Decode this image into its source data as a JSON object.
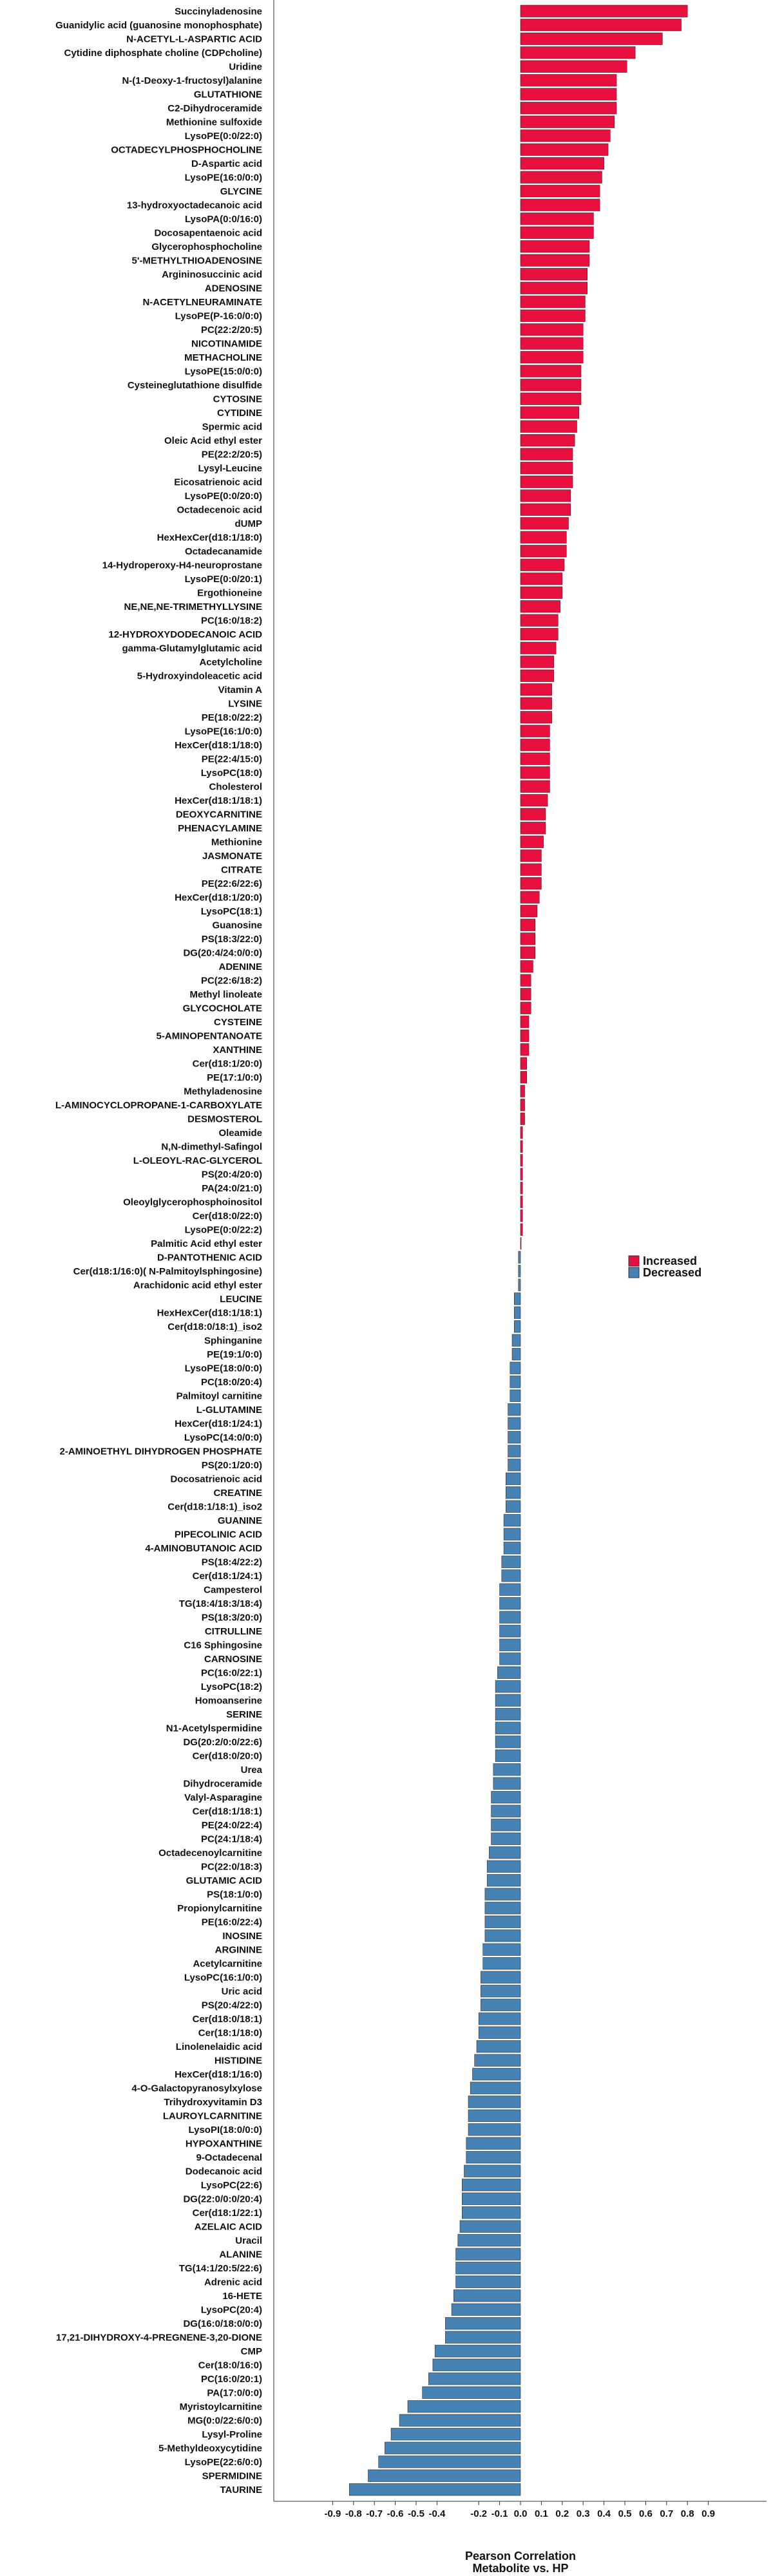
{
  "chart_data": {
    "type": "bar",
    "orientation": "horizontal",
    "xlabel": "Pearson Correlation",
    "xlabel2": "Metabolite vs. HP",
    "xlim": [
      -0.9,
      0.9
    ],
    "xticks": [
      -0.9,
      -0.8,
      -0.7,
      -0.6,
      -0.5,
      -0.4,
      -0.2,
      -0.1,
      0.0,
      0.1,
      0.2,
      0.3,
      0.4,
      0.5,
      0.6,
      0.7,
      0.8,
      0.9
    ],
    "xtick_labels": [
      "-0.9",
      "-0.8",
      "-0.7",
      "-0.6",
      "-0.5",
      "-0.4",
      "-0.2",
      "-0.1",
      "0.0",
      "0.1",
      "0.2",
      "0.3",
      "0.4",
      "0.5",
      "0.6",
      "0.7",
      "0.8",
      "0.9"
    ],
    "grid": false,
    "legend_position": "right",
    "legend": [
      {
        "name": "Increased",
        "color": "#e8103e"
      },
      {
        "name": "Decreased",
        "color": "#4682b4"
      }
    ],
    "categories": [
      "Succinyladenosine",
      "Guanidylic acid (guanosine monophosphate)",
      "N-ACETYL-L-ASPARTIC ACID",
      "Cytidine diphosphate choline (CDPcholine)",
      "Uridine",
      "N-(1-Deoxy-1-fructosyl)alanine",
      "GLUTATHIONE",
      "C2-Dihydroceramide",
      "Methionine sulfoxide",
      "LysoPE(0:0/22:0)",
      "OCTADECYLPHOSPHOCHOLINE",
      "D-Aspartic acid",
      "LysoPE(16:0/0:0)",
      "GLYCINE",
      "13-hydroxyoctadecanoic acid",
      "LysoPA(0:0/16:0)",
      "Docosapentaenoic acid",
      "Glycerophosphocholine",
      "5'-METHYLTHIOADENOSINE",
      "Argininosuccinic acid",
      "ADENOSINE",
      "N-ACETYLNEURAMINATE",
      "LysoPE(P-16:0/0:0)",
      "PC(22:2/20:5)",
      "NICOTINAMIDE",
      "METHACHOLINE",
      "LysoPE(15:0/0:0)",
      "Cysteineglutathione disulfide",
      "CYTOSINE",
      "CYTIDINE",
      "Spermic acid",
      "Oleic Acid ethyl ester",
      "PE(22:2/20:5)",
      "Lysyl-Leucine",
      "Eicosatrienoic acid",
      "LysoPE(0:0/20:0)",
      "Octadecenoic acid",
      "dUMP",
      "HexHexCer(d18:1/18:0)",
      "Octadecanamide",
      "14-Hydroperoxy-H4-neuroprostane",
      "LysoPE(0:0/20:1)",
      "Ergothioneine",
      "NE,NE,NE-TRIMETHYLLYSINE",
      "PC(16:0/18:2)",
      "12-HYDROXYDODECANOIC ACID",
      "gamma-Glutamylglutamic acid",
      "Acetylcholine",
      "5-Hydroxyindoleacetic acid",
      "Vitamin A",
      "LYSINE",
      "PE(18:0/22:2)",
      "LysoPE(16:1/0:0)",
      "HexCer(d18:1/18:0)",
      "PE(22:4/15:0)",
      "LysoPC(18:0)",
      "Cholesterol",
      "HexCer(d18:1/18:1)",
      "DEOXYCARNITINE",
      "PHENACYLAMINE",
      "Methionine",
      "JASMONATE",
      "CITRATE",
      "PE(22:6/22:6)",
      "HexCer(d18:1/20:0)",
      "LysoPC(18:1)",
      "Guanosine",
      "PS(18:3/22:0)",
      "DG(20:4/24:0/0:0)",
      "ADENINE",
      "PC(22:6/18:2)",
      "Methyl linoleate",
      "GLYCOCHOLATE",
      "CYSTEINE",
      "5-AMINOPENTANOATE",
      "XANTHINE",
      "Cer(d18:1/20:0)",
      "PE(17:1/0:0)",
      "Methyladenosine",
      "L-AMINOCYCLOPROPANE-1-CARBOXYLATE",
      "DESMOSTEROL",
      "Oleamide",
      "N,N-dimethyl-Safingol",
      "L-OLEOYL-RAC-GLYCEROL",
      "PS(20:4/20:0)",
      "PA(24:0/21:0)",
      "Oleoylglycerophosphoinositol",
      "Cer(d18:0/22:0)",
      "LysoPE(0:0/22:2)",
      "Palmitic Acid ethyl ester",
      "D-PANTOTHENIC ACID",
      "Cer(d18:1/16:0)( N-Palmitoylsphingosine)",
      "Arachidonic acid ethyl ester",
      "LEUCINE",
      "HexHexCer(d18:1/18:1)",
      "Cer(d18:0/18:1)_iso2",
      "Sphinganine",
      "PE(19:1/0:0)",
      "LysoPE(18:0/0:0)",
      "PC(18:0/20:4)",
      "Palmitoyl carnitine",
      "L-GLUTAMINE",
      "HexCer(d18:1/24:1)",
      "LysoPC(14:0/0:0)",
      "2-AMINOETHYL DIHYDROGEN PHOSPHATE",
      "PS(20:1/20:0)",
      "Docosatrienoic acid",
      "CREATINE",
      "Cer(d18:1/18:1)_iso2",
      "GUANINE",
      "PIPECOLINIC ACID",
      "4-AMINOBUTANOIC ACID",
      "PS(18:4/22:2)",
      "Cer(d18:1/24:1)",
      "Campesterol",
      "TG(18:4/18:3/18:4)",
      "PS(18:3/20:0)",
      "CITRULLINE",
      "C16 Sphingosine",
      "CARNOSINE",
      "PC(16:0/22:1)",
      "LysoPC(18:2)",
      "Homoanserine",
      "SERINE",
      "N1-Acetylspermidine",
      "DG(20:2/0:0/22:6)",
      "Cer(d18:0/20:0)",
      "Urea",
      "Dihydroceramide",
      "Valyl-Asparagine",
      "Cer(d18:1/18:1)",
      "PE(24:0/22:4)",
      "PC(24:1/18:4)",
      "Octadecenoylcarnitine",
      "PC(22:0/18:3)",
      "GLUTAMIC ACID",
      "PS(18:1/0:0)",
      "Propionylcarnitine",
      "PE(16:0/22:4)",
      "INOSINE",
      "ARGININE",
      "Acetylcarnitine",
      "LysoPC(16:1/0:0)",
      "Uric acid",
      "PS(20:4/22:0)",
      "Cer(d18:0/18:1)",
      "Cer(18:1/18:0)",
      "Linolenelaidic acid",
      "HISTIDINE",
      "HexCer(d18:1/16:0)",
      "4-O-Galactopyranosylxylose",
      "Trihydroxyvitamin D3",
      "LAUROYLCARNITINE",
      "LysoPI(18:0/0:0)",
      "HYPOXANTHINE",
      "9-Octadecenal",
      "Dodecanoic acid",
      "LysoPC(22:6)",
      "DG(22:0/0:0/20:4)",
      "Cer(d18:1/22:1)",
      "AZELAIC ACID",
      "Uracil",
      "ALANINE",
      "TG(14:1/20:5/22:6)",
      "Adrenic acid",
      "16-HETE",
      "LysoPC(20:4)",
      "DG(16:0/18:0/0:0)",
      "17,21-DIHYDROXY-4-PREGNENE-3,20-DIONE",
      "CMP",
      "Cer(18:0/16:0)",
      "PC(16:0/20:1)",
      "PA(17:0/0:0)",
      "Myristoylcarnitine",
      "MG(0:0/22:6/0:0)",
      "Lysyl-Proline",
      "5-Methyldeoxycytidine",
      "LysoPE(22:6/0:0)",
      "SPERMIDINE",
      "TAURINE"
    ],
    "values": [
      0.8,
      0.77,
      0.68,
      0.55,
      0.51,
      0.46,
      0.46,
      0.46,
      0.45,
      0.43,
      0.42,
      0.4,
      0.39,
      0.38,
      0.38,
      0.35,
      0.35,
      0.33,
      0.33,
      0.32,
      0.32,
      0.31,
      0.31,
      0.3,
      0.3,
      0.3,
      0.29,
      0.29,
      0.29,
      0.28,
      0.27,
      0.26,
      0.25,
      0.25,
      0.25,
      0.24,
      0.24,
      0.23,
      0.22,
      0.22,
      0.21,
      0.2,
      0.2,
      0.19,
      0.18,
      0.18,
      0.17,
      0.16,
      0.16,
      0.15,
      0.15,
      0.15,
      0.14,
      0.14,
      0.14,
      0.14,
      0.14,
      0.13,
      0.12,
      0.12,
      0.11,
      0.1,
      0.1,
      0.1,
      0.09,
      0.08,
      0.07,
      0.07,
      0.07,
      0.06,
      0.05,
      0.05,
      0.05,
      0.04,
      0.04,
      0.04,
      0.03,
      0.03,
      0.02,
      0.02,
      0.02,
      0.01,
      0.01,
      0.01,
      0.01,
      0.01,
      0.01,
      0.01,
      0.01,
      0.0,
      -0.01,
      -0.01,
      -0.01,
      -0.03,
      -0.03,
      -0.03,
      -0.04,
      -0.04,
      -0.05,
      -0.05,
      -0.05,
      -0.06,
      -0.06,
      -0.06,
      -0.06,
      -0.06,
      -0.07,
      -0.07,
      -0.07,
      -0.08,
      -0.08,
      -0.08,
      -0.09,
      -0.09,
      -0.1,
      -0.1,
      -0.1,
      -0.1,
      -0.1,
      -0.1,
      -0.11,
      -0.12,
      -0.12,
      -0.12,
      -0.12,
      -0.12,
      -0.12,
      -0.13,
      -0.13,
      -0.14,
      -0.14,
      -0.14,
      -0.14,
      -0.15,
      -0.16,
      -0.16,
      -0.17,
      -0.17,
      -0.17,
      -0.17,
      -0.18,
      -0.18,
      -0.19,
      -0.19,
      -0.19,
      -0.2,
      -0.2,
      -0.21,
      -0.22,
      -0.23,
      -0.24,
      -0.25,
      -0.25,
      -0.25,
      -0.26,
      -0.26,
      -0.27,
      -0.28,
      -0.28,
      -0.28,
      -0.29,
      -0.3,
      -0.31,
      -0.31,
      -0.31,
      -0.32,
      -0.33,
      -0.36,
      -0.36,
      -0.41,
      -0.42,
      -0.44,
      -0.47,
      -0.54,
      -0.58,
      -0.62,
      -0.65,
      -0.68,
      -0.73,
      -0.82
    ]
  }
}
